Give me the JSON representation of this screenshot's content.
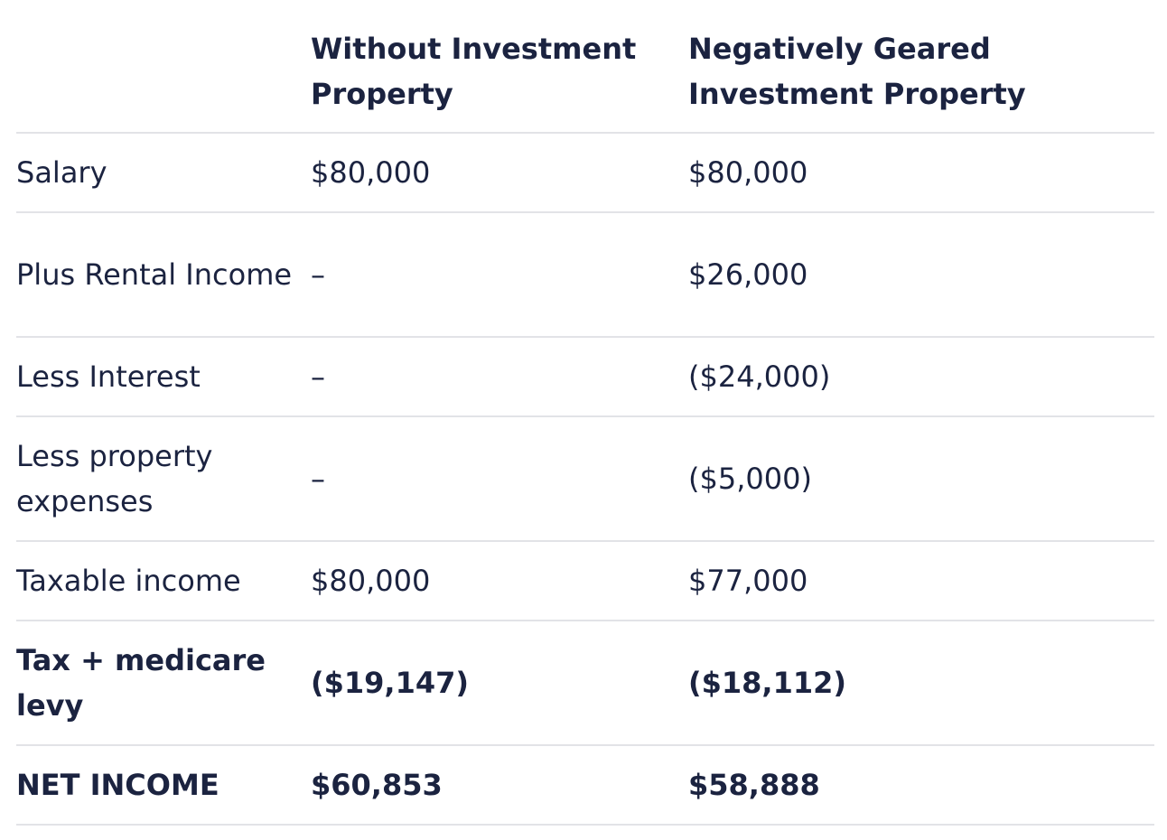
{
  "table": {
    "headers": [
      "",
      "Without Investment Property",
      "Negatively Geared Investment Property"
    ],
    "rows": [
      {
        "label": "Salary",
        "without": "$80,000",
        "geared": "$80,000"
      },
      {
        "label": "Plus Rental Income",
        "without": "–",
        "geared": "$26,000"
      },
      {
        "label": "Less Interest",
        "without": "–",
        "geared": "($24,000)"
      },
      {
        "label": "Less property expenses",
        "without": "–",
        "geared": "($5,000)"
      },
      {
        "label": "Taxable income",
        "without": "$80,000",
        "geared": "$77,000"
      },
      {
        "label": "Tax + medicare levy",
        "without": "($19,147)",
        "geared": "($18,112)"
      },
      {
        "label": "NET INCOME",
        "without": "$60,853",
        "geared": "$58,888"
      }
    ]
  }
}
